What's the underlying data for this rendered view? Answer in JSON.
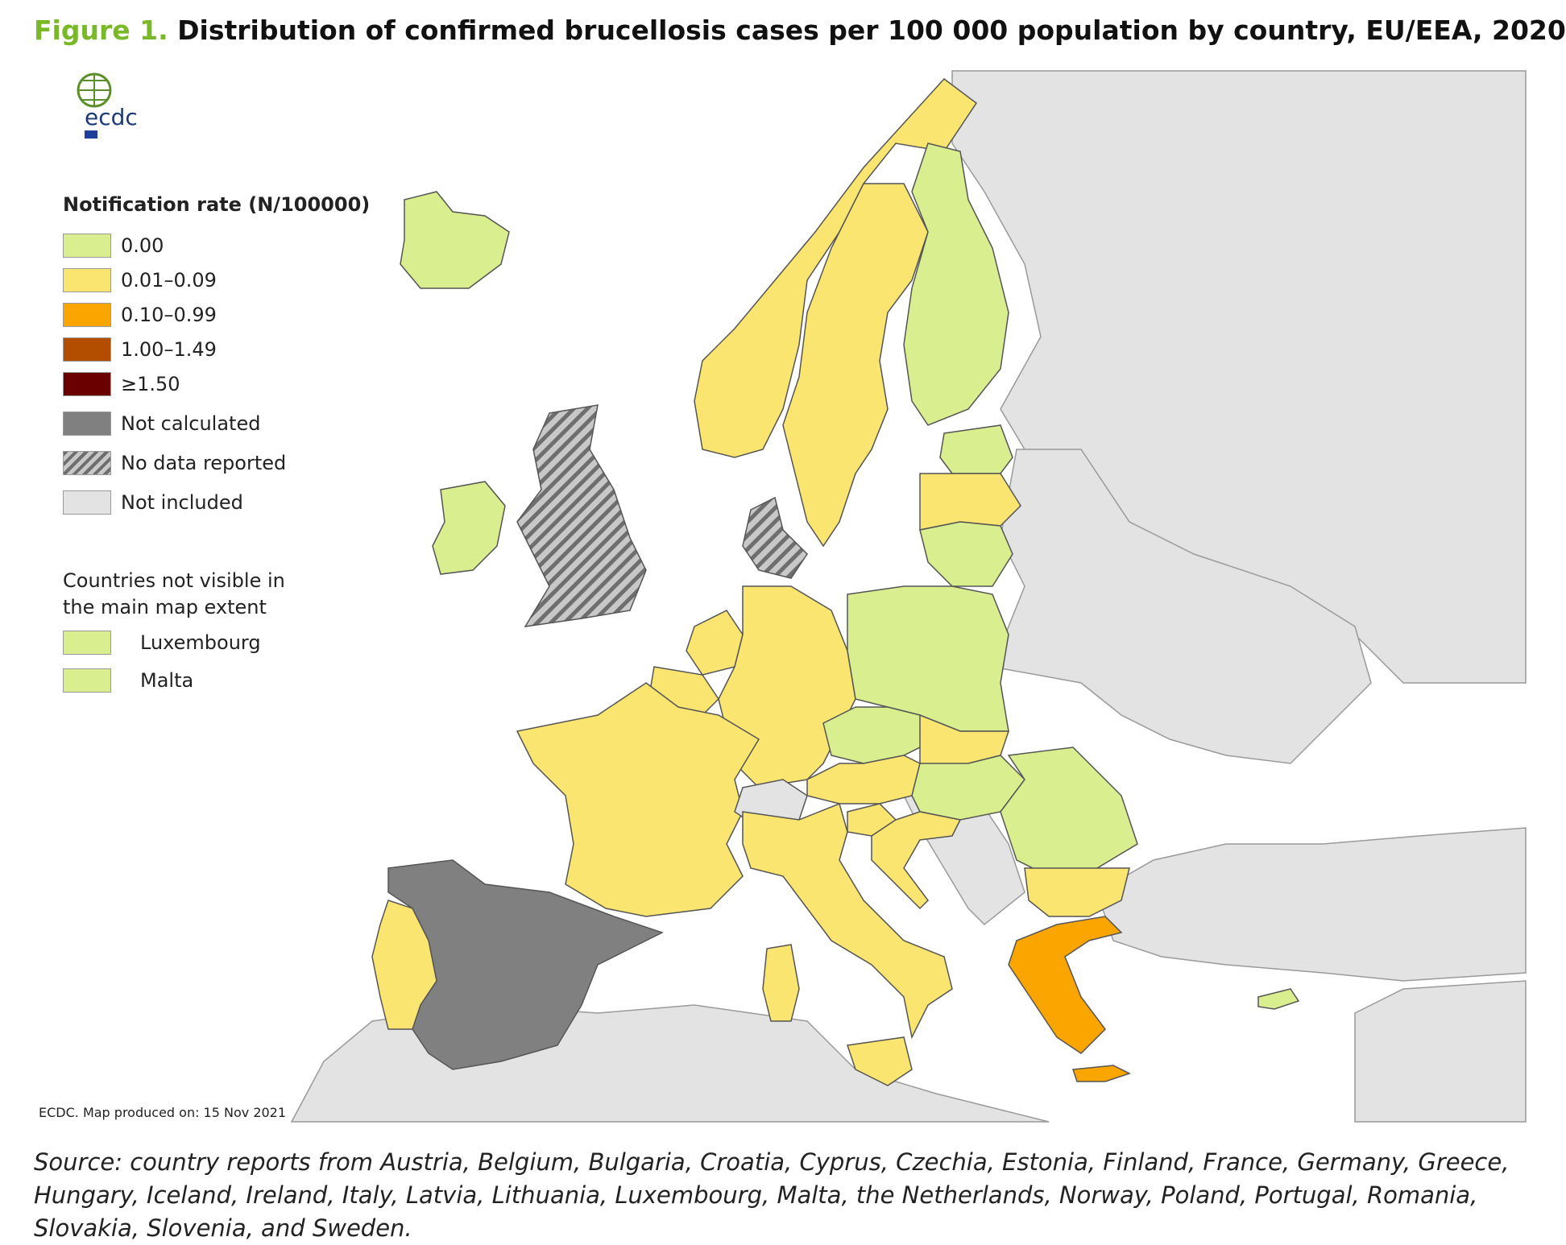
{
  "title": {
    "figure_label": "Figure 1.",
    "text": "Distribution of confirmed brucellosis cases per 100 000 population by country, EU/EEA, 2020"
  },
  "logo": {
    "text": "ecdc"
  },
  "legend": {
    "title": "Notification rate (N/100000)",
    "items": [
      {
        "label": "0.00",
        "color": "#d9ee8e"
      },
      {
        "label": "0.01–0.09",
        "color": "#fbe571"
      },
      {
        "label": "0.10–0.99",
        "color": "#fba600"
      },
      {
        "label": "1.00–1.49",
        "color": "#b34d00"
      },
      {
        "label": "≥1.50",
        "color": "#6b0000"
      },
      {
        "label": "Not calculated",
        "color": "#808080"
      },
      {
        "label": "No data reported",
        "color": "#9a9a9a"
      },
      {
        "label": "Not included",
        "color": "#e3e3e3"
      }
    ]
  },
  "not_visible": {
    "title": "Countries not visible in the main map extent",
    "items": [
      {
        "label": "Luxembourg",
        "color": "#d9ee8e"
      },
      {
        "label": "Malta",
        "color": "#d9ee8e"
      }
    ]
  },
  "credit": "ECDC. Map produced on: 15 Nov 2021",
  "source": "Source: country reports from Austria, Belgium, Bulgaria, Croatia, Cyprus, Czechia, Estonia, Finland, France, Germany, Greece, Hungary, Iceland, Ireland, Italy, Latvia, Lithuania, Luxembourg, Malta, the Netherlands, Norway, Poland, Portugal, Romania, Slovakia, Slovenia, and Sweden.",
  "map": {
    "colors": {
      "sea": "#ffffff",
      "border": "#555555"
    },
    "countries": [
      {
        "name": "Iceland",
        "category": "0.00"
      },
      {
        "name": "Ireland",
        "category": "0.00"
      },
      {
        "name": "United Kingdom",
        "category": "No data reported"
      },
      {
        "name": "Norway",
        "category": "0.01–0.09"
      },
      {
        "name": "Sweden",
        "category": "0.01–0.09"
      },
      {
        "name": "Finland",
        "category": "0.00"
      },
      {
        "name": "Estonia",
        "category": "0.00"
      },
      {
        "name": "Latvia",
        "category": "0.01–0.09"
      },
      {
        "name": "Lithuania",
        "category": "0.00"
      },
      {
        "name": "Denmark",
        "category": "No data reported"
      },
      {
        "name": "Netherlands",
        "category": "0.01–0.09"
      },
      {
        "name": "Belgium",
        "category": "0.01–0.09"
      },
      {
        "name": "Germany",
        "category": "0.01–0.09"
      },
      {
        "name": "Poland",
        "category": "0.00"
      },
      {
        "name": "Czechia",
        "category": "0.00"
      },
      {
        "name": "Slovakia",
        "category": "0.01–0.09"
      },
      {
        "name": "Austria",
        "category": "0.01–0.09"
      },
      {
        "name": "Hungary",
        "category": "0.00"
      },
      {
        "name": "Romania",
        "category": "0.00"
      },
      {
        "name": "Bulgaria",
        "category": "0.01–0.09"
      },
      {
        "name": "Slovenia",
        "category": "0.01–0.09"
      },
      {
        "name": "Croatia",
        "category": "0.01–0.09"
      },
      {
        "name": "France",
        "category": "0.01–0.09"
      },
      {
        "name": "Switzerland",
        "category": "Not included"
      },
      {
        "name": "Italy",
        "category": "0.01–0.09"
      },
      {
        "name": "Spain",
        "category": "Not calculated"
      },
      {
        "name": "Portugal",
        "category": "0.01–0.09"
      },
      {
        "name": "Greece",
        "category": "0.10–0.99"
      },
      {
        "name": "Cyprus",
        "category": "0.00"
      }
    ]
  }
}
